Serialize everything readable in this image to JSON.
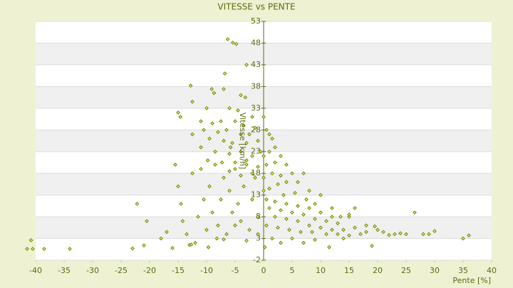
{
  "chart_data": {
    "type": "scatter",
    "title": "VITESSE vs PENTE",
    "x_label": "Pente [%]",
    "y_label": "Vitesse [km/h]",
    "color": "#6b7d00",
    "xlim": [
      -40,
      40
    ],
    "ylim": [
      -2,
      53
    ],
    "xticks": [
      -40,
      -35,
      -30,
      -25,
      -20,
      -15,
      -10,
      -5,
      0,
      5,
      10,
      15,
      20,
      25,
      30,
      35,
      40
    ],
    "yticks": [
      -2,
      3,
      8,
      13,
      18,
      23,
      28,
      33,
      38,
      43,
      48,
      53
    ],
    "banded": true,
    "x": [
      -41.5,
      -40.5,
      -40.8,
      -38.5,
      -34,
      -23,
      -22.2,
      -20.5,
      -21,
      -18,
      -17,
      -16,
      -15.5,
      -15,
      -14.2,
      -14.5,
      -13.5,
      -13,
      -12.7,
      -12.5,
      -12,
      -11,
      -11.5,
      -10.5,
      -10,
      -9.7,
      -9.5,
      -9,
      -8.5,
      -8.2,
      -8,
      -7.5,
      -7,
      -6.5,
      -6,
      -5.5,
      -5.8,
      -5,
      -4.5,
      -4,
      -3.5,
      -3,
      -2.5,
      -2,
      -1.5,
      -1,
      -0.5,
      0,
      -6.3,
      -5.4,
      -4.8,
      -6.8,
      -3,
      -12.8,
      -9.1,
      -7,
      -8.7,
      -4,
      -3.2,
      -12.5,
      -10,
      -6,
      -4.5,
      -2,
      -15,
      -14.6,
      -11,
      -9,
      -7.5,
      -5,
      -3.5,
      -1.5,
      -10.5,
      -8,
      -6.5,
      -4,
      -2.5,
      -12.5,
      0,
      0.5,
      1,
      -9.5,
      -7,
      -5.5,
      -3,
      -1,
      1.5,
      2,
      -11,
      -8.5,
      -6,
      -4,
      -2,
      0,
      1,
      3,
      -9.8,
      -7.3,
      -5,
      -3,
      -1,
      0.5,
      2,
      4,
      -6,
      -4,
      -2,
      0,
      1.5,
      3,
      5,
      7,
      2.5,
      4,
      6,
      8,
      1,
      3.5,
      5.5,
      7.5,
      9,
      0.5,
      2,
      4,
      6,
      8,
      10,
      12,
      1,
      3,
      5,
      7,
      9,
      11,
      13,
      15,
      2,
      4,
      6,
      8,
      10,
      12,
      14,
      16,
      18,
      0.5,
      2.5,
      4.5,
      6.5,
      8.5,
      11,
      13,
      15,
      17,
      20,
      21,
      22,
      23,
      24,
      25,
      26.5,
      28,
      29,
      30,
      35,
      36,
      11.5,
      19,
      3,
      5,
      7,
      0.2,
      1.5,
      9,
      16,
      15,
      19.5,
      14,
      18,
      10,
      12,
      13.5,
      -1,
      -3,
      -5,
      -7
    ],
    "y": [
      0.6,
      0.6,
      2.6,
      0.6,
      0.6,
      0.7,
      11,
      7,
      1.4,
      3,
      4.5,
      0.8,
      20,
      15,
      7,
      11,
      4,
      1.5,
      1.6,
      18,
      2,
      19,
      8,
      12,
      5,
      1,
      15,
      9,
      20,
      3,
      6,
      12,
      17,
      4,
      14,
      9,
      24,
      19,
      11,
      7,
      15,
      21,
      5,
      12,
      17,
      8,
      23,
      14,
      48.9,
      48.1,
      47.8,
      41,
      43,
      38.2,
      37.4,
      37.4,
      36.5,
      36,
      35.5,
      34.5,
      33,
      33,
      32.5,
      31,
      32,
      31,
      30,
      29.5,
      30,
      30,
      29,
      28.5,
      28,
      27.5,
      28,
      27,
      27,
      27,
      31,
      28,
      27,
      26,
      25.5,
      25,
      25,
      25.5,
      26,
      24,
      24,
      23,
      22.5,
      23,
      22,
      22,
      23,
      22,
      21,
      20.5,
      20.5,
      20,
      19.5,
      20,
      20.5,
      20,
      18.5,
      17.5,
      18,
      17,
      18,
      17.5,
      18,
      18,
      15.5,
      16,
      16,
      14,
      14.5,
      13,
      13.5,
      12,
      11,
      12,
      11.5,
      11,
      10.5,
      10,
      9,
      8,
      10,
      9.5,
      9,
      8.5,
      7.5,
      7,
      6.5,
      8,
      8,
      7.5,
      7,
      6,
      5.5,
      5,
      5,
      5.5,
      4.5,
      6,
      5.5,
      5,
      4.5,
      4.5,
      4,
      4,
      3.7,
      4,
      5,
      4.5,
      3.8,
      4,
      4.2,
      4,
      9,
      4,
      4,
      4.7,
      3,
      3.7,
      1,
      1.3,
      2,
      3,
      2,
      1,
      3,
      2.7,
      10,
      8.5,
      5.8,
      3,
      6,
      13,
      10,
      8,
      4,
      2.5,
      6,
      2.8
    ]
  }
}
